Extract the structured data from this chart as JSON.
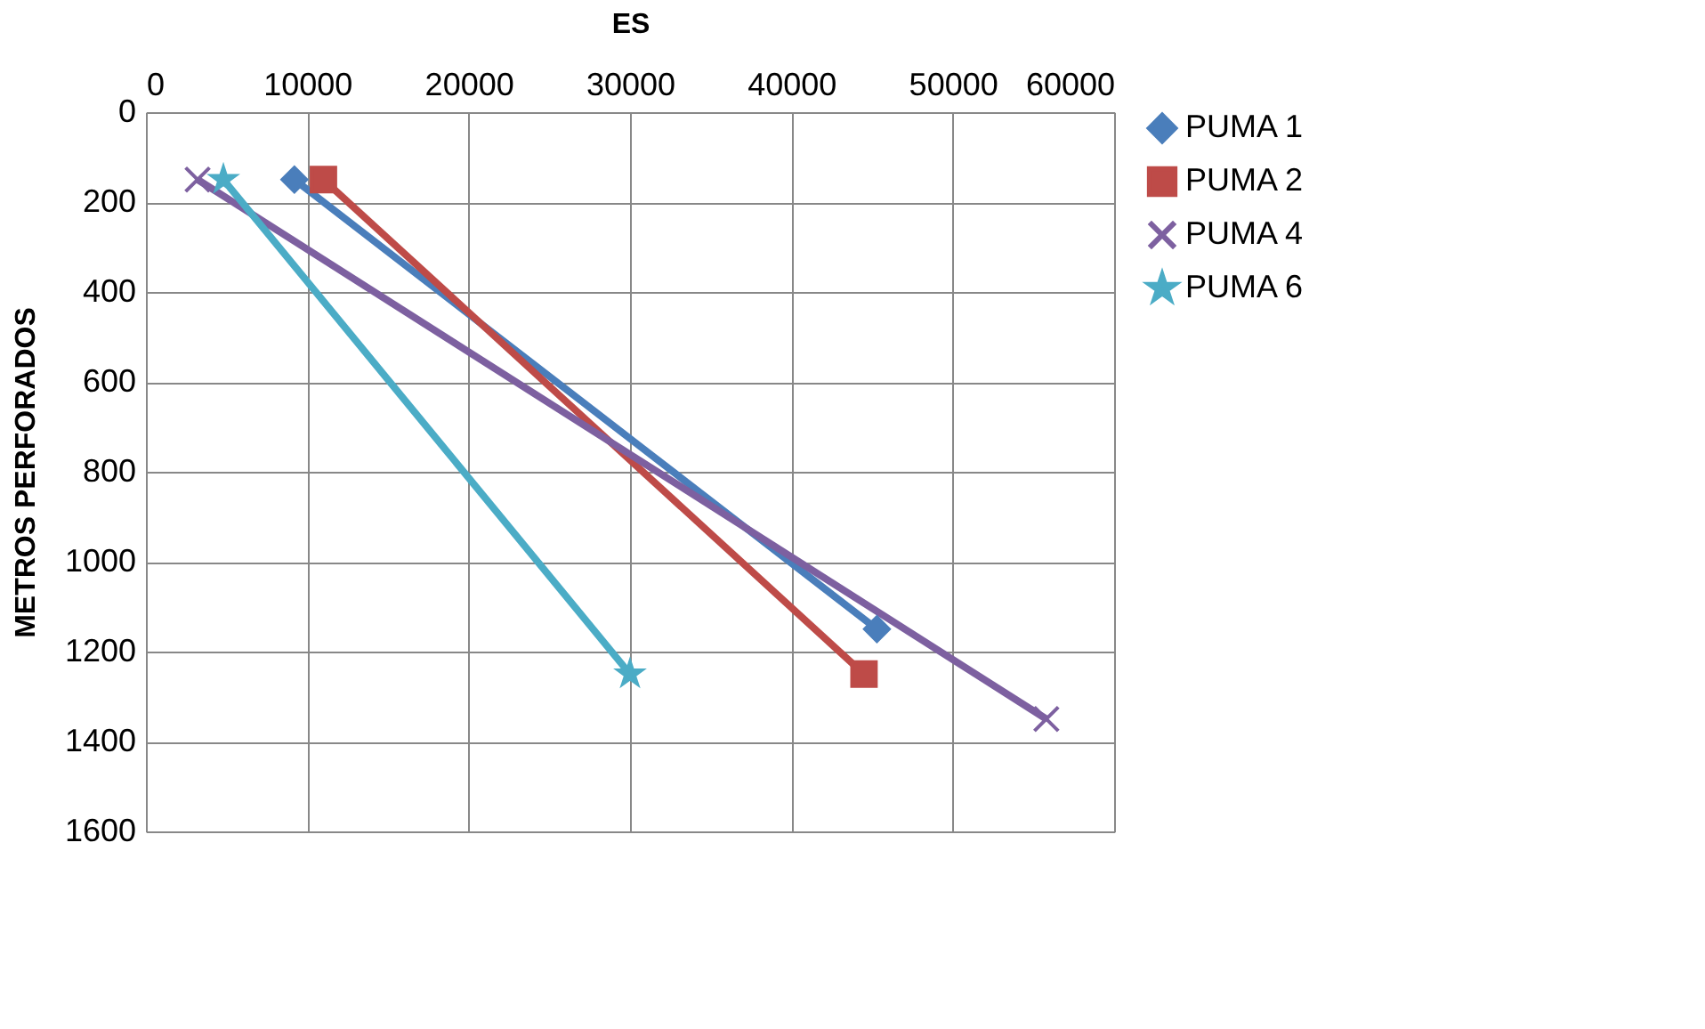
{
  "chart_data": {
    "type": "line",
    "xlabel": "ES",
    "ylabel": "METROS PERFORADOS",
    "xlim": [
      0,
      60000
    ],
    "xticks": [
      0,
      10000,
      20000,
      30000,
      40000,
      50000,
      60000
    ],
    "ylim": [
      1600,
      0
    ],
    "yticks": [
      0,
      200,
      400,
      600,
      800,
      1000,
      1200,
      1400,
      1600
    ],
    "grid": true,
    "legend": "right",
    "series": [
      {
        "name": "PUMA 1",
        "color": "#4a7ebb",
        "marker": "diamond",
        "x": [
          9200,
          45300
        ],
        "values": [
          150,
          1150
        ]
      },
      {
        "name": "PUMA 2",
        "color": "#be4b48",
        "marker": "square",
        "x": [
          11000,
          44500
        ],
        "values": [
          150,
          1250
        ]
      },
      {
        "name": "PUMA 4",
        "color": "#7d60a0",
        "marker": "cross",
        "x": [
          3200,
          55800
        ],
        "values": [
          150,
          1350
        ]
      },
      {
        "name": "PUMA 6",
        "color": "#4bacc6",
        "marker": "star",
        "x": [
          4800,
          30000
        ],
        "values": [
          150,
          1250
        ]
      }
    ]
  }
}
